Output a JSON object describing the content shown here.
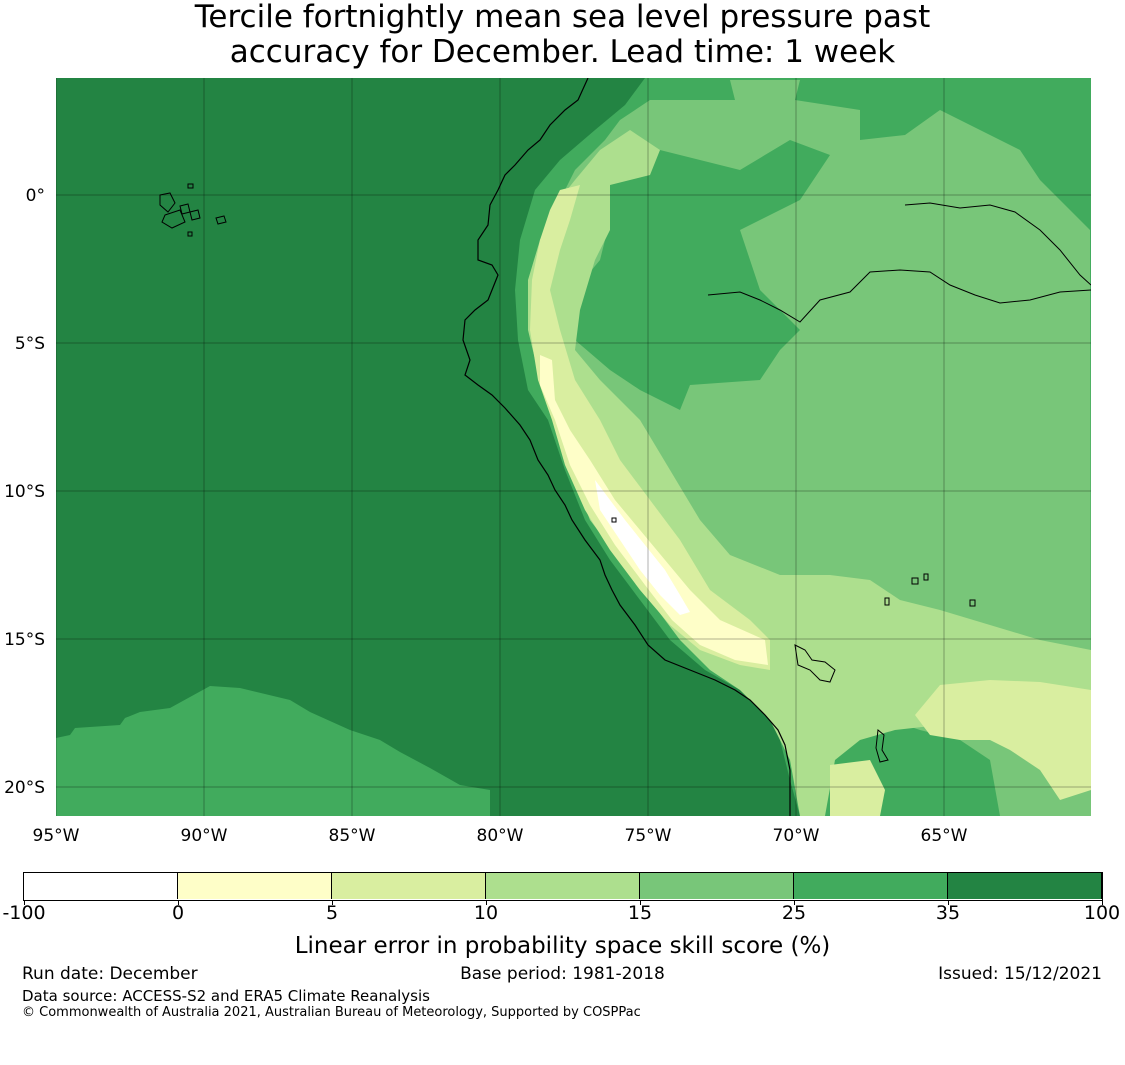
{
  "title": {
    "line1": "Tercile fortnightly mean sea level pressure past",
    "line2": "accuracy for December. Lead time: 1 week"
  },
  "map": {
    "region": "Peru / Ecuador Pacific coast",
    "lon_labels": [
      "95°W",
      "90°W",
      "85°W",
      "80°W",
      "75°W",
      "70°W",
      "65°W"
    ],
    "lat_labels": [
      "0°",
      "5°S",
      "10°S",
      "15°S",
      "20°S"
    ],
    "lon_values": [
      -95,
      -90,
      -85,
      -80,
      -75,
      -70,
      -65
    ],
    "lat_values": [
      0,
      -5,
      -10,
      -15,
      -20
    ],
    "lon_range": [
      -95,
      -60
    ],
    "lat_range": [
      -21,
      4
    ],
    "field": "Linear error in probability space skill score (%)",
    "dominant_ocean_class": "35 to 100",
    "coastal_max_class": "-100 to 0"
  },
  "colorbar": {
    "boundaries": [
      "-100",
      "0",
      "5",
      "10",
      "15",
      "25",
      "35",
      "100"
    ],
    "colors": [
      "#ffffff",
      "#fefec8",
      "#d9eea0",
      "#addf8e",
      "#78c679",
      "#41ab5d",
      "#238443"
    ],
    "label": "Linear error in probability space skill score (%)"
  },
  "footer": {
    "run_date": "Run date: December",
    "base_period": "Base period: 1981-2018",
    "issued": "Issued: 15/12/2021",
    "data_source": "Data source: ACCESS-S2 and ERA5 Climate Reanalysis",
    "copyright": "© Commonwealth of Australia 2021, Australian Bureau of Meteorology, Supported by COSPPac"
  }
}
